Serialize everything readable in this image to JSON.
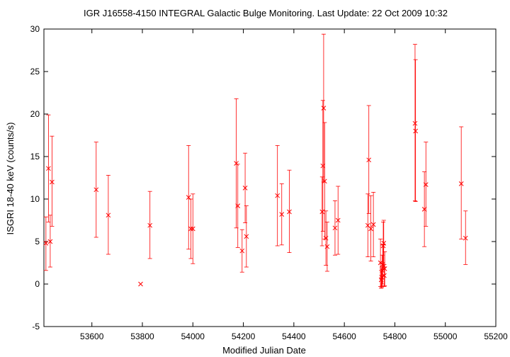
{
  "chart_data": {
    "type": "scatter",
    "title": "IGR J16558-4150   INTEGRAL Galactic Bulge Monitoring.  Last Update: 22 Oct 2009 10:32",
    "xlabel": "Modified Julian Date",
    "ylabel": "ISGRI 18-40 keV (counts/s)",
    "xlim": [
      53410,
      55200
    ],
    "ylim": [
      -5,
      30
    ],
    "xticks": [
      "53600",
      "53800",
      "54000",
      "54200",
      "54400",
      "54600",
      "54800",
      "55000",
      "55200"
    ],
    "yticks": [
      "-5",
      "0",
      "5",
      "10",
      "15",
      "20",
      "25",
      "30"
    ],
    "grid": false,
    "marker": "x",
    "color": "#ff0000",
    "points": [
      {
        "x": 53418,
        "y": 4.8,
        "lo": 1.6,
        "hi": 7.9
      },
      {
        "x": 53428,
        "y": 13.6,
        "lo": 7.3,
        "hi": 19.9
      },
      {
        "x": 53435,
        "y": 5.0,
        "lo": 2.0,
        "hi": 8.1
      },
      {
        "x": 53442,
        "y": 12.0,
        "lo": 6.8,
        "hi": 17.4
      },
      {
        "x": 53617,
        "y": 11.1,
        "lo": 5.5,
        "hi": 16.7
      },
      {
        "x": 53665,
        "y": 8.1,
        "lo": 3.5,
        "hi": 12.8
      },
      {
        "x": 53793,
        "y": 0.0,
        "lo": 0.0,
        "hi": 0.0
      },
      {
        "x": 53830,
        "y": 6.9,
        "lo": 3.0,
        "hi": 10.9
      },
      {
        "x": 53983,
        "y": 10.2,
        "lo": 4.1,
        "hi": 16.3
      },
      {
        "x": 53992,
        "y": 6.5,
        "lo": 3.0,
        "hi": 10.0
      },
      {
        "x": 54000,
        "y": 6.5,
        "lo": 2.4,
        "hi": 10.6
      },
      {
        "x": 54172,
        "y": 14.2,
        "lo": 6.6,
        "hi": 21.8
      },
      {
        "x": 54178,
        "y": 9.2,
        "lo": 4.3,
        "hi": 14.1
      },
      {
        "x": 54195,
        "y": 3.9,
        "lo": 1.4,
        "hi": 6.4
      },
      {
        "x": 54207,
        "y": 11.3,
        "lo": 7.2,
        "hi": 15.4
      },
      {
        "x": 54212,
        "y": 5.6,
        "lo": 2.0,
        "hi": 9.2
      },
      {
        "x": 54335,
        "y": 10.4,
        "lo": 4.5,
        "hi": 16.3
      },
      {
        "x": 54352,
        "y": 8.2,
        "lo": 4.6,
        "hi": 11.8
      },
      {
        "x": 54382,
        "y": 8.5,
        "lo": 3.7,
        "hi": 13.4
      },
      {
        "x": 54512,
        "y": 8.5,
        "lo": 4.5,
        "hi": 12.6
      },
      {
        "x": 54515,
        "y": 13.9,
        "lo": 6.2,
        "hi": 21.6
      },
      {
        "x": 54518,
        "y": 20.7,
        "lo": 12.0,
        "hi": 29.4
      },
      {
        "x": 54522,
        "y": 12.1,
        "lo": 5.3,
        "hi": 19.0
      },
      {
        "x": 54527,
        "y": 5.4,
        "lo": 2.2,
        "hi": 8.6
      },
      {
        "x": 54532,
        "y": 4.4,
        "lo": 1.5,
        "hi": 7.3
      },
      {
        "x": 54563,
        "y": 6.6,
        "lo": 3.4,
        "hi": 9.8
      },
      {
        "x": 54575,
        "y": 7.5,
        "lo": 3.5,
        "hi": 11.5
      },
      {
        "x": 54693,
        "y": 6.9,
        "lo": 3.2,
        "hi": 10.6
      },
      {
        "x": 54697,
        "y": 14.6,
        "lo": 8.3,
        "hi": 21.0
      },
      {
        "x": 54705,
        "y": 6.5,
        "lo": 2.7,
        "hi": 10.4
      },
      {
        "x": 54715,
        "y": 7.0,
        "lo": 3.2,
        "hi": 10.8
      },
      {
        "x": 54743,
        "y": 2.5,
        "lo": -0.3,
        "hi": 5.3
      },
      {
        "x": 54746,
        "y": 0.5,
        "lo": -0.5,
        "hi": 1.6
      },
      {
        "x": 54748,
        "y": 0.8,
        "lo": -0.4,
        "hi": 2.0
      },
      {
        "x": 54750,
        "y": 1.6,
        "lo": -0.2,
        "hi": 3.4
      },
      {
        "x": 54752,
        "y": 2.3,
        "lo": 0.0,
        "hi": 4.6
      },
      {
        "x": 54754,
        "y": 4.5,
        "lo": 1.8,
        "hi": 7.3
      },
      {
        "x": 54756,
        "y": 4.8,
        "lo": 2.0,
        "hi": 7.5
      },
      {
        "x": 54758,
        "y": 1.0,
        "lo": -0.3,
        "hi": 2.3
      },
      {
        "x": 54760,
        "y": 1.8,
        "lo": -0.2,
        "hi": 3.8
      },
      {
        "x": 54880,
        "y": 18.9,
        "lo": 9.8,
        "hi": 28.2
      },
      {
        "x": 54882,
        "y": 18.0,
        "lo": 9.7,
        "hi": 26.4
      },
      {
        "x": 54917,
        "y": 8.8,
        "lo": 4.4,
        "hi": 13.2
      },
      {
        "x": 54923,
        "y": 11.7,
        "lo": 6.8,
        "hi": 16.7
      },
      {
        "x": 55063,
        "y": 11.8,
        "lo": 5.3,
        "hi": 18.5
      },
      {
        "x": 55080,
        "y": 5.4,
        "lo": 2.3,
        "hi": 8.6
      }
    ]
  }
}
